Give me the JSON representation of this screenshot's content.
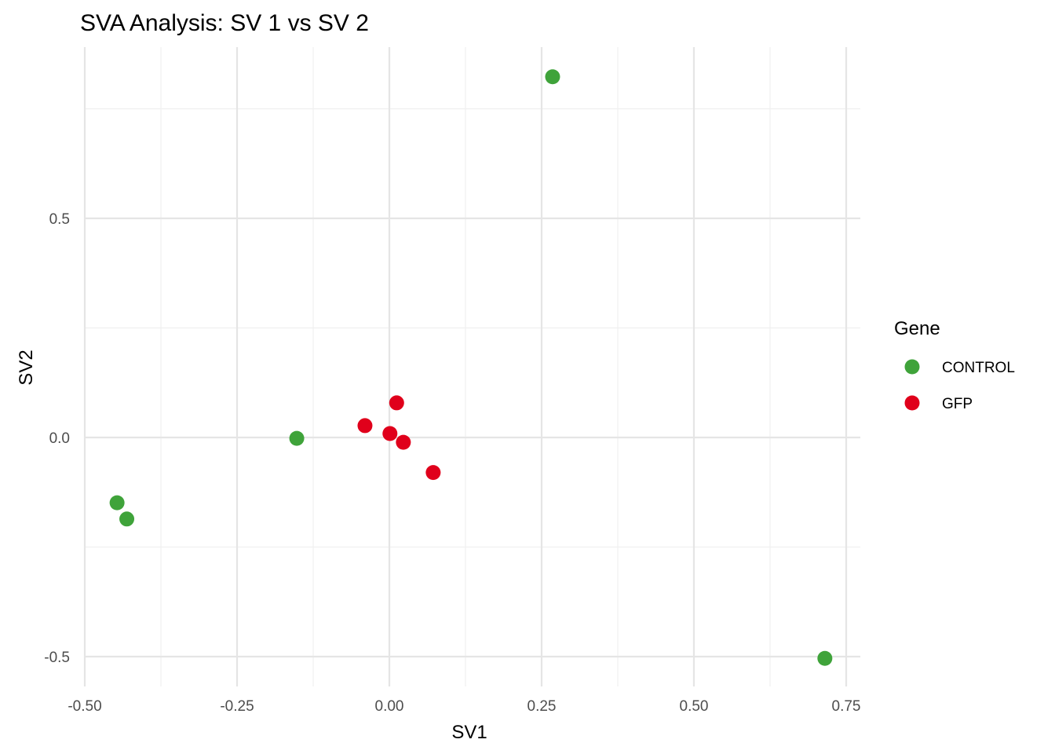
{
  "chart_data": {
    "type": "scatter",
    "title": "SVA Analysis: SV 1  vs SV 2",
    "xlabel": "SV1",
    "ylabel": "SV2",
    "xlim": [
      -0.5,
      0.75
    ],
    "ylim": [
      -0.5,
      0.75
    ],
    "x_ticks": [
      -0.5,
      -0.25,
      0.0,
      0.25,
      0.5,
      0.75
    ],
    "x_tick_labels": [
      "-0.50",
      "-0.25",
      "0.00",
      "0.25",
      "0.50",
      "0.75"
    ],
    "y_ticks": [
      -0.5,
      0.0,
      0.5
    ],
    "y_tick_labels": [
      "-0.5",
      "0.0",
      "0.5"
    ],
    "grid": true,
    "legend": {
      "title": "Gene",
      "placement": "right"
    },
    "series": [
      {
        "name": "CONTROL",
        "color": "#3fa33a",
        "points": [
          {
            "x": 0.268,
            "y": 0.823
          },
          {
            "x": -0.152,
            "y": -0.002
          },
          {
            "x": -0.447,
            "y": -0.149
          },
          {
            "x": -0.431,
            "y": -0.186
          },
          {
            "x": 0.715,
            "y": -0.504
          }
        ]
      },
      {
        "name": "GFP",
        "color": "#e0001b",
        "points": [
          {
            "x": 0.012,
            "y": 0.079
          },
          {
            "x": -0.04,
            "y": 0.027
          },
          {
            "x": 0.001,
            "y": 0.009
          },
          {
            "x": 0.023,
            "y": -0.011
          },
          {
            "x": 0.072,
            "y": -0.08
          }
        ]
      }
    ]
  }
}
